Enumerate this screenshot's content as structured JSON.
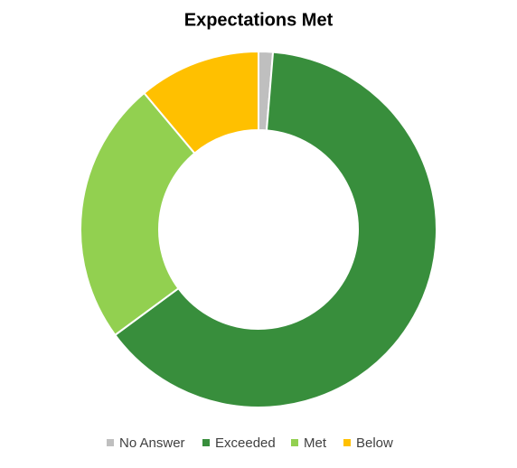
{
  "chart_data": {
    "type": "donut",
    "title": "Expectations Met",
    "categories": [
      "No Answer",
      "Exceeded",
      "Met",
      "Below"
    ],
    "values": [
      1.3,
      63.6,
      24.0,
      11.1
    ],
    "colors": [
      "#bfbfbf",
      "#388e3c",
      "#92d050",
      "#ffc000"
    ],
    "legend": "bottom"
  }
}
